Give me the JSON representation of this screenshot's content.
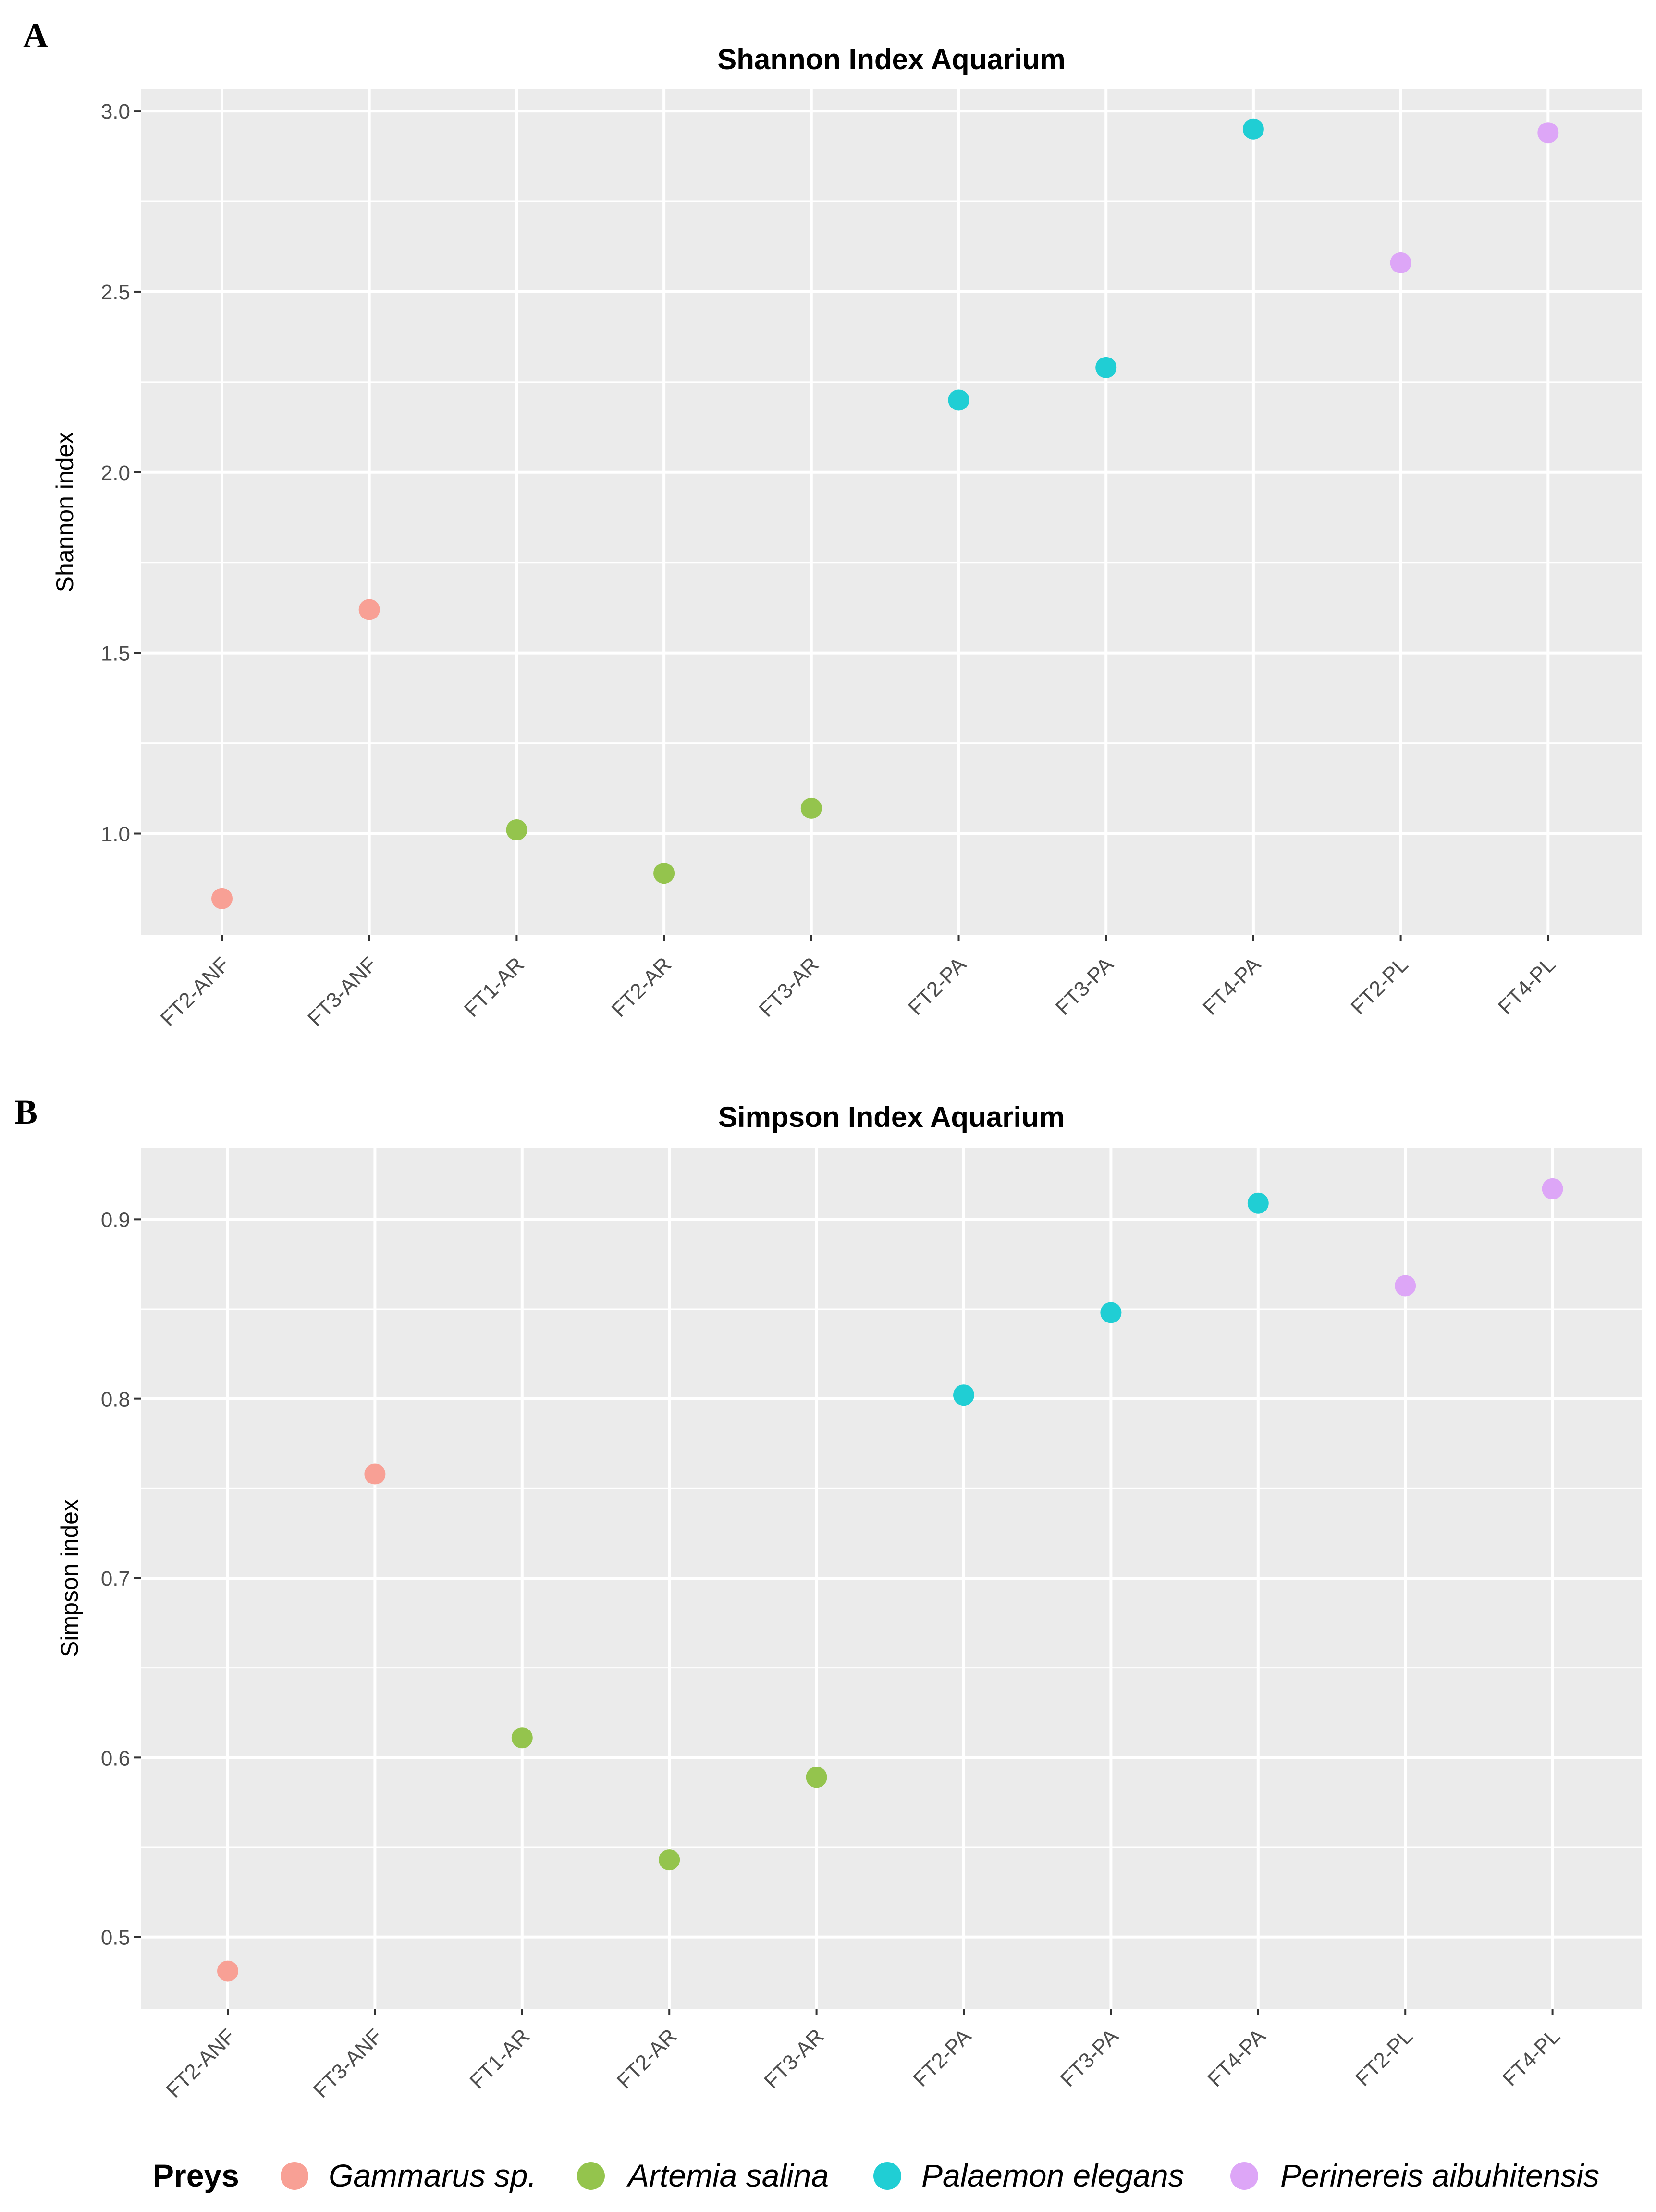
{
  "chart_data": [
    {
      "type": "scatter",
      "panel_label": "A",
      "title": "Shannon Index Aquarium",
      "xlabel": "",
      "ylabel": "Shannon index",
      "ylim": [
        0.72,
        3.06
      ],
      "yticks": [
        1.0,
        1.5,
        2.0,
        2.5,
        3.0
      ],
      "ytick_labels": [
        "1.0",
        "1.5",
        "2.0",
        "2.5",
        "3.0"
      ],
      "grid": true,
      "categories": [
        "FT2-ANF",
        "FT3-ANF",
        "FT1-AR",
        "FT2-AR",
        "FT3-AR",
        "FT2-PA",
        "FT3-PA",
        "FT4-PA",
        "FT2-PL",
        "FT4-PL"
      ],
      "values": [
        0.82,
        1.62,
        1.01,
        0.89,
        1.07,
        2.2,
        2.29,
        2.95,
        2.58,
        2.94
      ],
      "groups": [
        "Gammarus sp.",
        "Gammarus sp.",
        "Artemia salina",
        "Artemia salina",
        "Artemia salina",
        "Palaemon elegans",
        "Palaemon elegans",
        "Palaemon elegans",
        "Perinereis aibuhitensis",
        "Perinereis aibuhitensis"
      ]
    },
    {
      "type": "scatter",
      "panel_label": "B",
      "title": "Simpson Index Aquarium",
      "xlabel": "",
      "ylabel": "Simpson index",
      "ylim": [
        0.46,
        0.94
      ],
      "yticks": [
        0.5,
        0.6,
        0.7,
        0.8,
        0.9
      ],
      "ytick_labels": [
        "0.5",
        "0.6",
        "0.7",
        "0.8",
        "0.9"
      ],
      "grid": true,
      "categories": [
        "FT2-ANF",
        "FT3-ANF",
        "FT1-AR",
        "FT2-AR",
        "FT3-AR",
        "FT2-PA",
        "FT3-PA",
        "FT4-PA",
        "FT2-PL",
        "FT4-PL"
      ],
      "values": [
        0.481,
        0.758,
        0.611,
        0.543,
        0.589,
        0.802,
        0.848,
        0.909,
        0.863,
        0.917
      ],
      "groups": [
        "Gammarus sp.",
        "Gammarus sp.",
        "Artemia salina",
        "Artemia salina",
        "Artemia salina",
        "Palaemon elegans",
        "Palaemon elegans",
        "Palaemon elegans",
        "Perinereis aibuhitensis",
        "Perinereis aibuhitensis"
      ]
    }
  ],
  "legend": {
    "title": "Preys",
    "placement": "bottom",
    "items": [
      {
        "label": "Gammarus sp.",
        "color": "#F8A095"
      },
      {
        "label": "Artemia salina",
        "color": "#94C44D"
      },
      {
        "label": "Palaemon elegans",
        "color": "#20CED4"
      },
      {
        "label": "Perinereis aibuhitensis",
        "color": "#DDA6F7"
      }
    ]
  },
  "colors": {
    "panel_background": "#EBEBEB",
    "gridline": "#FFFFFF",
    "axis_text": "#4D4D4D"
  }
}
